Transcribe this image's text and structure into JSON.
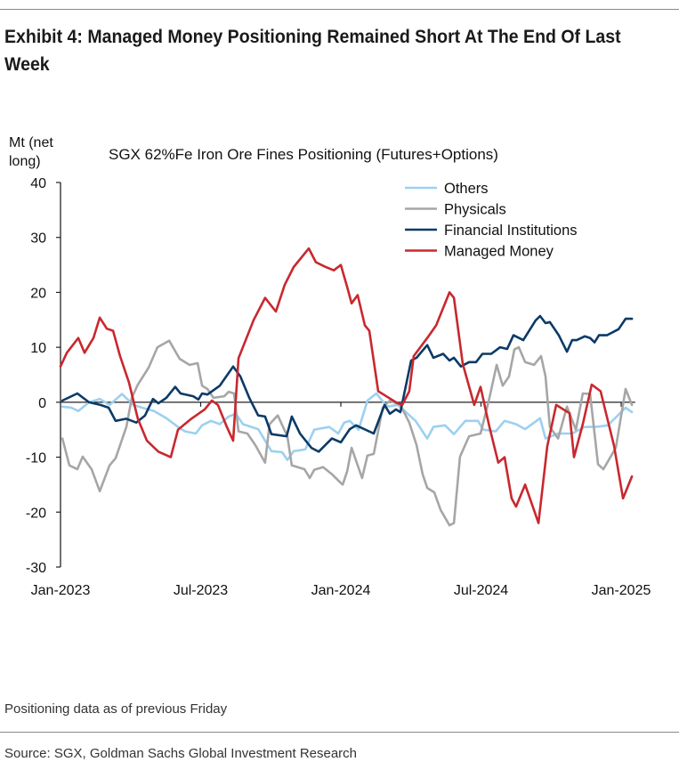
{
  "header": {
    "title": "Exhibit 4: Managed Money Positioning Remained Short At The End Of Last Week"
  },
  "footer": {
    "note": "Positioning data as of previous Friday",
    "source": "Source: SGX, Goldman Sachs Global Investment Research"
  },
  "chart_data": {
    "type": "line",
    "title": "SGX 62%Fe Iron Ore Fines Positioning (Futures+Options)",
    "ylabel": "Mt (net long)",
    "ylabel_lines": [
      "Mt (net",
      "long)"
    ],
    "xlabel": "",
    "x_unit": "months since Jan-2023",
    "xlim": [
      0,
      25
    ],
    "ylim": [
      -30,
      40
    ],
    "yticks": [
      40,
      30,
      20,
      10,
      0,
      -10,
      -20,
      -30
    ],
    "xticks": [
      {
        "label": "Jan-2023",
        "x": 0
      },
      {
        "label": "Jul-2023",
        "x": 6
      },
      {
        "label": "Jan-2024",
        "x": 12
      },
      {
        "label": "Jul-2024",
        "x": 18
      },
      {
        "label": "Jan-2025",
        "x": 24
      }
    ],
    "grid": false,
    "legend_position": "top-right",
    "series": [
      {
        "name": "Others",
        "color": "#9dd0f0",
        "points": [
          [
            0.08,
            -0.8
          ],
          [
            0.46,
            -1
          ],
          [
            0.76,
            -1.6
          ],
          [
            1.22,
            0
          ],
          [
            1.68,
            0.6
          ],
          [
            2.1,
            -0.5
          ],
          [
            2.63,
            1.5
          ],
          [
            3.12,
            -0.5
          ],
          [
            3.5,
            -1
          ],
          [
            4,
            -1.6
          ],
          [
            4.53,
            -2.9
          ],
          [
            5.03,
            -4.5
          ],
          [
            5.33,
            -5.3
          ],
          [
            5.79,
            -5.7
          ],
          [
            6.06,
            -4.2
          ],
          [
            6.44,
            -3.4
          ],
          [
            6.82,
            -4
          ],
          [
            7.2,
            -2.6
          ],
          [
            7.5,
            -2.1
          ],
          [
            7.81,
            -4
          ],
          [
            8.46,
            -4.9
          ],
          [
            9.03,
            -8.9
          ],
          [
            9.49,
            -9.1
          ],
          [
            9.71,
            -10.5
          ],
          [
            9.98,
            -8.9
          ],
          [
            10.48,
            -8.6
          ],
          [
            10.86,
            -5
          ],
          [
            11.5,
            -4.5
          ],
          [
            11.89,
            -5.7
          ],
          [
            12.15,
            -3.7
          ],
          [
            12.38,
            -3.4
          ],
          [
            12.76,
            -5
          ],
          [
            13.14,
            0.3
          ],
          [
            13.52,
            1.6
          ],
          [
            13.98,
            -0.8
          ],
          [
            14.44,
            -0.5
          ],
          [
            15.2,
            -3.4
          ],
          [
            15.7,
            -6.6
          ],
          [
            15.96,
            -4.5
          ],
          [
            16.46,
            -4.2
          ],
          [
            16.84,
            -5.8
          ],
          [
            17.33,
            -3.4
          ],
          [
            17.87,
            -3.4
          ],
          [
            18.1,
            -5
          ],
          [
            18.63,
            -5.3
          ],
          [
            19.01,
            -3.4
          ],
          [
            19.5,
            -4
          ],
          [
            19.89,
            -4.9
          ],
          [
            20.53,
            -2.9
          ],
          [
            20.76,
            -6.6
          ],
          [
            21.3,
            -5.7
          ],
          [
            21.9,
            -5.7
          ],
          [
            22.44,
            -4.5
          ],
          [
            22.93,
            -4.5
          ],
          [
            23.43,
            -4.2
          ],
          [
            23.81,
            -2.6
          ],
          [
            24.19,
            -1
          ],
          [
            24.46,
            -1.8
          ]
        ]
      },
      {
        "name": "Physicals",
        "color": "#a6a6a6",
        "points": [
          [
            0.08,
            -6.6
          ],
          [
            0.38,
            -11.5
          ],
          [
            0.72,
            -12.2
          ],
          [
            0.95,
            -9.9
          ],
          [
            1.33,
            -12.2
          ],
          [
            1.68,
            -16.2
          ],
          [
            2.1,
            -11.5
          ],
          [
            2.36,
            -10.2
          ],
          [
            2.82,
            -4.5
          ],
          [
            3.05,
            0.8
          ],
          [
            3.31,
            3.2
          ],
          [
            3.77,
            6.3
          ],
          [
            4.15,
            10
          ],
          [
            4.65,
            11.2
          ],
          [
            5.1,
            7.9
          ],
          [
            5.52,
            6.8
          ],
          [
            5.87,
            7.1
          ],
          [
            6.06,
            3
          ],
          [
            6.29,
            2.4
          ],
          [
            6.55,
            0.8
          ],
          [
            7.01,
            1.1
          ],
          [
            7.2,
            1.9
          ],
          [
            7.43,
            1.6
          ],
          [
            7.62,
            -5.3
          ],
          [
            8,
            -5.7
          ],
          [
            8.34,
            -7.8
          ],
          [
            8.76,
            -11
          ],
          [
            8.95,
            -4
          ],
          [
            9.3,
            -2.4
          ],
          [
            9.71,
            -6.2
          ],
          [
            9.9,
            -11.5
          ],
          [
            10.44,
            -12.2
          ],
          [
            10.67,
            -13.8
          ],
          [
            10.86,
            -12.3
          ],
          [
            11.24,
            -11.8
          ],
          [
            11.62,
            -13.1
          ],
          [
            12,
            -14.7
          ],
          [
            12.08,
            -15
          ],
          [
            12.27,
            -12.6
          ],
          [
            12.46,
            -8.3
          ],
          [
            12.91,
            -13.8
          ],
          [
            13.14,
            -9.7
          ],
          [
            13.41,
            -9.4
          ],
          [
            13.79,
            -1
          ],
          [
            14.1,
            0.3
          ],
          [
            14.55,
            -0.5
          ],
          [
            14.93,
            -3.7
          ],
          [
            15.24,
            -7.8
          ],
          [
            15.5,
            -13.1
          ],
          [
            15.7,
            -15.6
          ],
          [
            16,
            -16.4
          ],
          [
            16.27,
            -19.6
          ],
          [
            16.65,
            -22.4
          ],
          [
            16.84,
            -22
          ],
          [
            17.1,
            -9.9
          ],
          [
            17.49,
            -6.2
          ],
          [
            17.98,
            -5.7
          ],
          [
            18.36,
            0.8
          ],
          [
            18.67,
            6.8
          ],
          [
            18.93,
            3
          ],
          [
            19.2,
            4.7
          ],
          [
            19.43,
            9.6
          ],
          [
            19.62,
            10
          ],
          [
            19.89,
            7.3
          ],
          [
            20.27,
            6.8
          ],
          [
            20.57,
            8.4
          ],
          [
            20.76,
            4.7
          ],
          [
            20.95,
            -4.5
          ],
          [
            21.3,
            -6.6
          ],
          [
            21.68,
            -0.8
          ],
          [
            22.06,
            -5
          ],
          [
            22.36,
            1.6
          ],
          [
            22.67,
            1.5
          ],
          [
            23.01,
            -11.3
          ],
          [
            23.24,
            -12.2
          ],
          [
            23.77,
            -8.3
          ],
          [
            24.19,
            2.4
          ],
          [
            24.46,
            -0.5
          ]
        ]
      },
      {
        "name": "Financial Institutions",
        "color": "#0b3a66",
        "points": [
          [
            0.08,
            0.3
          ],
          [
            0.72,
            1.6
          ],
          [
            1.22,
            0
          ],
          [
            1.71,
            -0.5
          ],
          [
            2.06,
            -1
          ],
          [
            2.36,
            -3.4
          ],
          [
            2.82,
            -3
          ],
          [
            3.24,
            -3.7
          ],
          [
            3.62,
            -2.4
          ],
          [
            3.96,
            0.6
          ],
          [
            4.19,
            -0.2
          ],
          [
            4.53,
            0.8
          ],
          [
            4.91,
            2.8
          ],
          [
            5.14,
            1.6
          ],
          [
            5.68,
            1.1
          ],
          [
            5.9,
            0.5
          ],
          [
            6.06,
            1.6
          ],
          [
            6.29,
            1.4
          ],
          [
            6.82,
            3
          ],
          [
            7.39,
            6.5
          ],
          [
            7.7,
            4.7
          ],
          [
            8.08,
            0.8
          ],
          [
            8.46,
            -2.4
          ],
          [
            8.76,
            -2.6
          ],
          [
            9.03,
            -5.8
          ],
          [
            9.68,
            -6.2
          ],
          [
            9.9,
            -2.6
          ],
          [
            10.25,
            -5.7
          ],
          [
            10.74,
            -8.3
          ],
          [
            11.05,
            -9
          ],
          [
            11.62,
            -6.6
          ],
          [
            12,
            -7.3
          ],
          [
            12.38,
            -4.9
          ],
          [
            12.65,
            -4.2
          ],
          [
            13.41,
            -5.7
          ],
          [
            13.87,
            -0.5
          ],
          [
            14.1,
            -2.1
          ],
          [
            14.36,
            -1.3
          ],
          [
            14.55,
            -1.8
          ],
          [
            15.01,
            7.6
          ],
          [
            15.24,
            8.1
          ],
          [
            15.7,
            10.4
          ],
          [
            15.96,
            8.1
          ],
          [
            16.38,
            8.8
          ],
          [
            16.65,
            7.6
          ],
          [
            16.84,
            8.1
          ],
          [
            17.14,
            6.5
          ],
          [
            17.49,
            7.3
          ],
          [
            17.79,
            7.3
          ],
          [
            18.06,
            8.8
          ],
          [
            18.44,
            8.8
          ],
          [
            18.82,
            10
          ],
          [
            19.12,
            9.7
          ],
          [
            19.39,
            12.2
          ],
          [
            19.81,
            11.3
          ],
          [
            20.34,
            14.9
          ],
          [
            20.53,
            15.7
          ],
          [
            20.76,
            14.4
          ],
          [
            20.95,
            14.6
          ],
          [
            21.33,
            12.2
          ],
          [
            21.68,
            9.2
          ],
          [
            21.9,
            11.3
          ],
          [
            22.1,
            11.3
          ],
          [
            22.44,
            12
          ],
          [
            22.67,
            11.7
          ],
          [
            22.86,
            10.9
          ],
          [
            23.05,
            12.2
          ],
          [
            23.39,
            12.2
          ],
          [
            23.89,
            13.3
          ],
          [
            24.19,
            15.2
          ],
          [
            24.46,
            15.2
          ]
        ]
      },
      {
        "name": "Managed Money",
        "color": "#c8282e",
        "points": [
          [
            0,
            6.5
          ],
          [
            0.27,
            9
          ],
          [
            0.76,
            11.7
          ],
          [
            1.03,
            9
          ],
          [
            1.41,
            11.7
          ],
          [
            1.68,
            15.4
          ],
          [
            1.98,
            13.4
          ],
          [
            2.25,
            13
          ],
          [
            2.55,
            8.4
          ],
          [
            2.93,
            3.6
          ],
          [
            3.31,
            -3
          ],
          [
            3.7,
            -7
          ],
          [
            4.19,
            -9
          ],
          [
            4.72,
            -10
          ],
          [
            5.03,
            -5
          ],
          [
            5.6,
            -3
          ],
          [
            6.17,
            -1.3
          ],
          [
            6.48,
            0.3
          ],
          [
            6.74,
            -0.5
          ],
          [
            7.12,
            -4.5
          ],
          [
            7.39,
            -7
          ],
          [
            7.62,
            8
          ],
          [
            8.27,
            15
          ],
          [
            8.76,
            19
          ],
          [
            9.22,
            16.5
          ],
          [
            9.6,
            21.4
          ],
          [
            9.98,
            24.6
          ],
          [
            10.63,
            28
          ],
          [
            10.93,
            25.5
          ],
          [
            11.31,
            24.7
          ],
          [
            11.7,
            24
          ],
          [
            12,
            25
          ],
          [
            12.27,
            21
          ],
          [
            12.46,
            18
          ],
          [
            12.72,
            19.5
          ],
          [
            13.03,
            14
          ],
          [
            13.22,
            13
          ],
          [
            13.6,
            2
          ],
          [
            13.98,
            1
          ],
          [
            14.36,
            0
          ],
          [
            14.63,
            -0.5
          ],
          [
            14.93,
            2
          ],
          [
            15.12,
            8.4
          ],
          [
            15.7,
            11.7
          ],
          [
            16.08,
            14
          ],
          [
            16.65,
            20
          ],
          [
            16.84,
            19
          ],
          [
            17.22,
            7
          ],
          [
            17.71,
            -0.5
          ],
          [
            17.98,
            2.8
          ],
          [
            18.36,
            -4.5
          ],
          [
            18.74,
            -11
          ],
          [
            19.01,
            -10
          ],
          [
            19.31,
            -17.5
          ],
          [
            19.5,
            -19
          ],
          [
            19.89,
            -15
          ],
          [
            20.46,
            -22
          ],
          [
            20.84,
            -8
          ],
          [
            21.22,
            -0.5
          ],
          [
            21.79,
            -2
          ],
          [
            21.98,
            -10
          ],
          [
            22.36,
            -4
          ],
          [
            22.74,
            3.2
          ],
          [
            23.12,
            2
          ],
          [
            23.7,
            -8
          ],
          [
            24.08,
            -17.5
          ],
          [
            24.46,
            -13.5
          ]
        ]
      }
    ]
  }
}
